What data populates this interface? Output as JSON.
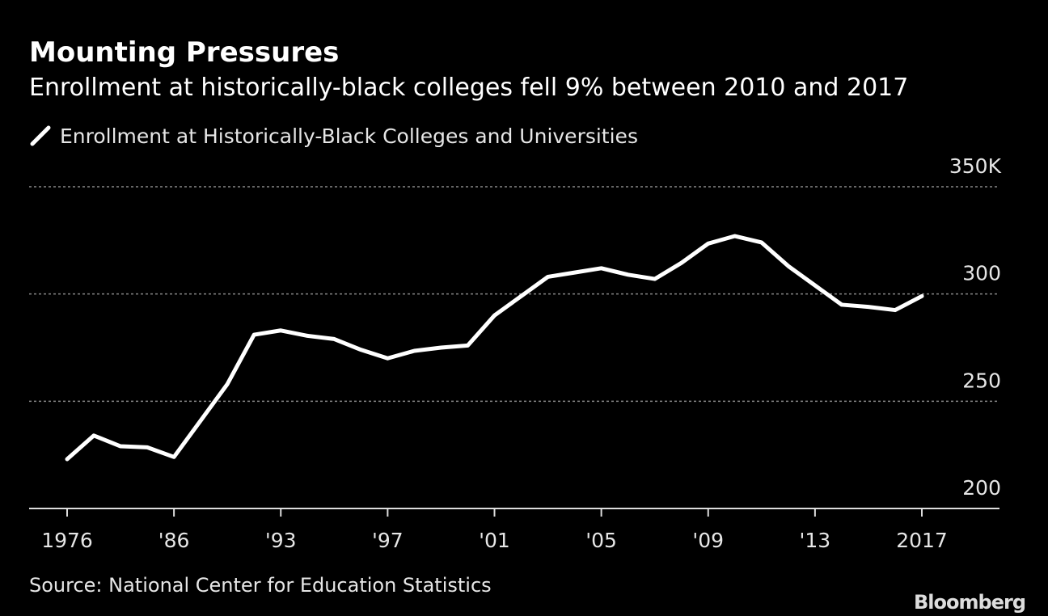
{
  "chart_data": {
    "type": "line",
    "title": "Mounting Pressures",
    "subtitle": "Enrollment at historically-black colleges fell 9% between 2010 and 2017",
    "source": "Source: National Center for Education Statistics",
    "brand": "Bloomberg",
    "categories": [
      "1976",
      null,
      null,
      null,
      "'86",
      null,
      null,
      null,
      "'93",
      null,
      null,
      null,
      "'97",
      null,
      null,
      null,
      "'01",
      null,
      null,
      null,
      "'05",
      null,
      null,
      null,
      "'09",
      null,
      null,
      null,
      "'13",
      null,
      null,
      null,
      "2017"
    ],
    "series": [
      {
        "name": "Enrollment at Historically-Black Colleges and Universities",
        "color": "#ffffff",
        "values": [
          223,
          234,
          229,
          228.5,
          224,
          241,
          258,
          281,
          283,
          280.5,
          279,
          274,
          270,
          273.5,
          275,
          276,
          290,
          299,
          308,
          310,
          312,
          309,
          307,
          314.5,
          323.5,
          327,
          324,
          313,
          304,
          295,
          294,
          292.5,
          299
        ]
      }
    ],
    "ylim": [
      200,
      350
    ],
    "yticks": [
      200,
      250,
      300,
      {
        "value": 350,
        "label": "350K"
      }
    ],
    "grid": true
  }
}
